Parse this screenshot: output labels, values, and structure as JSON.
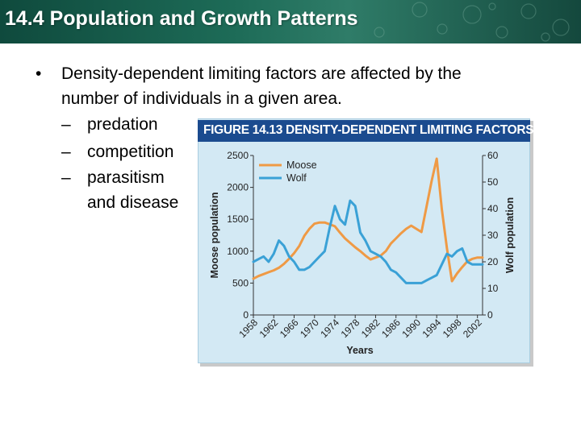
{
  "header": {
    "title": "14.4 Population and Growth Patterns",
    "colors": {
      "background": "#1d6b57",
      "text": "#ffffff"
    }
  },
  "bullets": {
    "marker": "•",
    "main_line1": "Density-dependent limiting factors are affected by the",
    "main_line2": "number of individuals in a given area.",
    "sub_marker": "–",
    "sub_items": [
      "predation",
      "competition",
      "parasitism",
      "and disease"
    ]
  },
  "figure": {
    "label": "FIGURE 14.13  DENSITY-DEPENDENT LIMITING FACTORS",
    "colors": {
      "panel": "#d3e9f4",
      "bar": "#1b4b8f",
      "moose": "#ef9a45",
      "wolf": "#3aa1d6"
    }
  },
  "chart_data": {
    "type": "line",
    "title": "DENSITY-DEPENDENT LIMITING FACTORS",
    "xlabel": "Years",
    "ylabel": "Moose population",
    "y2label": "Wolf population",
    "xlim": [
      1958,
      2003
    ],
    "ylim": [
      0,
      2500
    ],
    "y2lim": [
      0,
      60
    ],
    "x_ticks": [
      1958,
      1962,
      1966,
      1970,
      1974,
      1978,
      1982,
      1986,
      1990,
      1994,
      1998,
      2002
    ],
    "y_ticks": [
      0,
      500,
      1000,
      1500,
      2000,
      2500
    ],
    "y2_ticks": [
      0,
      10,
      20,
      30,
      40,
      50,
      60
    ],
    "legend": [
      "Moose",
      "Wolf"
    ],
    "series": [
      {
        "name": "Moose",
        "axis": "left",
        "color": "#ef9a45",
        "x": [
          1958,
          1959,
          1960,
          1961,
          1962,
          1963,
          1964,
          1965,
          1966,
          1967,
          1968,
          1969,
          1970,
          1971,
          1972,
          1973,
          1974,
          1975,
          1976,
          1977,
          1978,
          1979,
          1980,
          1981,
          1982,
          1983,
          1984,
          1985,
          1986,
          1987,
          1988,
          1989,
          1990,
          1991,
          1992,
          1993,
          1994,
          1995,
          1996,
          1997,
          1998,
          1999,
          2000,
          2001,
          2002,
          2003
        ],
        "values": [
          570,
          610,
          640,
          670,
          700,
          740,
          800,
          880,
          970,
          1080,
          1240,
          1350,
          1430,
          1450,
          1450,
          1420,
          1390,
          1290,
          1200,
          1130,
          1060,
          1000,
          930,
          870,
          900,
          930,
          1000,
          1120,
          1200,
          1280,
          1350,
          1400,
          1350,
          1300,
          1700,
          2100,
          2450,
          1660,
          1050,
          530,
          650,
          750,
          840,
          880,
          900,
          900
        ]
      },
      {
        "name": "Wolf",
        "axis": "right",
        "color": "#3aa1d6",
        "x": [
          1958,
          1959,
          1960,
          1961,
          1962,
          1963,
          1964,
          1965,
          1966,
          1967,
          1968,
          1969,
          1970,
          1971,
          1972,
          1973,
          1974,
          1975,
          1976,
          1977,
          1978,
          1979,
          1980,
          1981,
          1982,
          1983,
          1984,
          1985,
          1986,
          1987,
          1988,
          1989,
          1990,
          1991,
          1992,
          1993,
          1994,
          1995,
          1996,
          1997,
          1998,
          1999,
          2000,
          2001,
          2002,
          2003
        ],
        "values": [
          20,
          21,
          22,
          20,
          23,
          28,
          26,
          22,
          20,
          17,
          17,
          18,
          20,
          22,
          24,
          33,
          41,
          36,
          34,
          43,
          41,
          31,
          28,
          24,
          23,
          22,
          20,
          17,
          16,
          14,
          12,
          12,
          12,
          12,
          13,
          14,
          15,
          19,
          23,
          22,
          24,
          25,
          20,
          19,
          19,
          19
        ]
      }
    ]
  }
}
